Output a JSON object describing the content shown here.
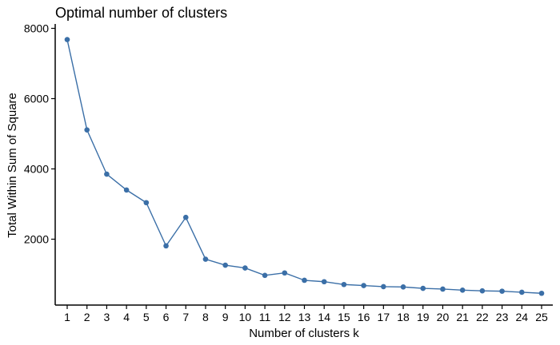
{
  "chart_data": {
    "type": "line",
    "title": "Optimal number of clusters",
    "xlabel": "Number of clusters k",
    "ylabel": "Total Within Sum of Square",
    "x": [
      1,
      2,
      3,
      4,
      5,
      6,
      7,
      8,
      9,
      10,
      11,
      12,
      13,
      14,
      15,
      16,
      17,
      18,
      19,
      20,
      21,
      22,
      23,
      24,
      25
    ],
    "y": [
      7680,
      5110,
      3850,
      3400,
      3040,
      1810,
      2620,
      1430,
      1260,
      1180,
      970,
      1040,
      830,
      790,
      710,
      680,
      650,
      640,
      600,
      580,
      550,
      530,
      520,
      490,
      460
    ],
    "ylim": [
      0,
      8000
    ],
    "yticks": [
      2000,
      4000,
      6000,
      8000
    ],
    "color": "#3b6fa7",
    "grid": false
  }
}
